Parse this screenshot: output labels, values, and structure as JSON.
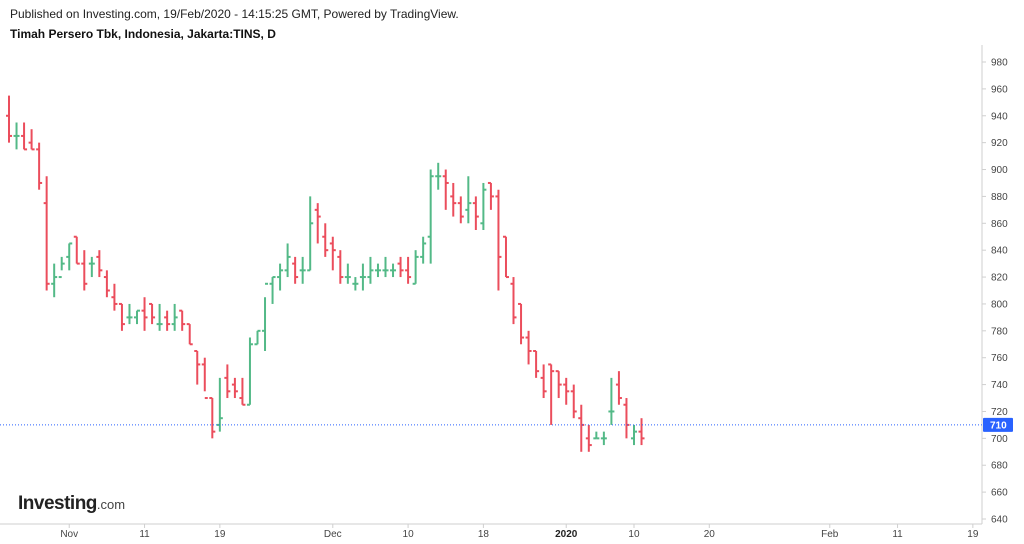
{
  "header": {
    "published": "Published on Investing.com, 19/Feb/2020 - 14:15:25 GMT, Powered by TradingView.",
    "symbol": "Timah Persero Tbk, Indonesia, Jakarta:TINS, D"
  },
  "logo": {
    "brand": "Investing",
    "suffix": ".com"
  },
  "colors": {
    "up": "#53b987",
    "down": "#eb4d5c",
    "last_line": "#2962ff",
    "badge": "#2962ff"
  },
  "chart_data": {
    "type": "ohlc",
    "ylim": [
      635,
      990
    ],
    "yticks": [
      640,
      660,
      680,
      700,
      720,
      740,
      760,
      780,
      800,
      820,
      840,
      860,
      880,
      900,
      920,
      940,
      960,
      980
    ],
    "last_price": 710,
    "last_price_label": "710",
    "xticks": [
      {
        "label": "Nov",
        "index": 8,
        "bold": false
      },
      {
        "label": "11",
        "index": 18,
        "bold": false
      },
      {
        "label": "19",
        "index": 28,
        "bold": false
      },
      {
        "label": "Dec",
        "index": 43,
        "bold": false
      },
      {
        "label": "10",
        "index": 53,
        "bold": false
      },
      {
        "label": "18",
        "index": 63,
        "bold": false
      },
      {
        "label": "2020",
        "index": 74,
        "bold": true
      },
      {
        "label": "10",
        "index": 83,
        "bold": false
      },
      {
        "label": "20",
        "index": 93,
        "bold": false
      },
      {
        "label": "Feb",
        "index": 109,
        "bold": false
      },
      {
        "label": "11",
        "index": 118,
        "bold": false
      },
      {
        "label": "19",
        "index": 128,
        "bold": false
      }
    ],
    "bars": [
      [
        940,
        955,
        920,
        925
      ],
      [
        925,
        935,
        915,
        925
      ],
      [
        925,
        935,
        915,
        915
      ],
      [
        920,
        930,
        915,
        915
      ],
      [
        915,
        920,
        885,
        890
      ],
      [
        875,
        895,
        810,
        815
      ],
      [
        815,
        830,
        805,
        820
      ],
      [
        820,
        835,
        825,
        830
      ],
      [
        835,
        845,
        825,
        845
      ],
      [
        850,
        850,
        830,
        830
      ],
      [
        830,
        840,
        810,
        815
      ],
      [
        830,
        835,
        820,
        830
      ],
      [
        835,
        840,
        820,
        825
      ],
      [
        820,
        825,
        805,
        810
      ],
      [
        805,
        815,
        795,
        800
      ],
      [
        800,
        800,
        780,
        785
      ],
      [
        790,
        800,
        785,
        790
      ],
      [
        790,
        795,
        785,
        795
      ],
      [
        795,
        805,
        780,
        790
      ],
      [
        800,
        800,
        785,
        790
      ],
      [
        785,
        800,
        780,
        785
      ],
      [
        790,
        795,
        780,
        785
      ],
      [
        785,
        800,
        780,
        790
      ],
      [
        795,
        795,
        780,
        785
      ],
      [
        785,
        785,
        770,
        770
      ],
      [
        765,
        765,
        740,
        755
      ],
      [
        755,
        760,
        735,
        730
      ],
      [
        730,
        730,
        700,
        705
      ],
      [
        710,
        745,
        705,
        715
      ],
      [
        745,
        755,
        730,
        735
      ],
      [
        740,
        745,
        730,
        735
      ],
      [
        730,
        745,
        725,
        725
      ],
      [
        725,
        775,
        725,
        770
      ],
      [
        770,
        780,
        770,
        780
      ],
      [
        780,
        805,
        765,
        815
      ],
      [
        815,
        820,
        800,
        820
      ],
      [
        820,
        830,
        810,
        825
      ],
      [
        825,
        845,
        820,
        835
      ],
      [
        830,
        835,
        815,
        820
      ],
      [
        825,
        835,
        815,
        825
      ],
      [
        825,
        880,
        825,
        860
      ],
      [
        870,
        875,
        845,
        865
      ],
      [
        850,
        860,
        835,
        840
      ],
      [
        845,
        850,
        825,
        840
      ],
      [
        835,
        840,
        815,
        820
      ],
      [
        820,
        830,
        815,
        820
      ],
      [
        815,
        820,
        810,
        815
      ],
      [
        820,
        830,
        810,
        820
      ],
      [
        820,
        835,
        815,
        825
      ],
      [
        825,
        830,
        820,
        825
      ],
      [
        825,
        835,
        820,
        825
      ],
      [
        825,
        830,
        820,
        825
      ],
      [
        830,
        835,
        820,
        825
      ],
      [
        825,
        835,
        815,
        820
      ],
      [
        815,
        840,
        815,
        835
      ],
      [
        835,
        850,
        830,
        845
      ],
      [
        850,
        900,
        830,
        895
      ],
      [
        895,
        905,
        885,
        895
      ],
      [
        895,
        900,
        870,
        890
      ],
      [
        880,
        890,
        865,
        875
      ],
      [
        875,
        880,
        860,
        865
      ],
      [
        870,
        895,
        860,
        875
      ],
      [
        875,
        880,
        855,
        865
      ],
      [
        860,
        890,
        855,
        885
      ],
      [
        890,
        890,
        870,
        880
      ],
      [
        880,
        885,
        810,
        835
      ],
      [
        850,
        850,
        820,
        820
      ],
      [
        815,
        820,
        785,
        790
      ],
      [
        800,
        800,
        770,
        775
      ],
      [
        775,
        780,
        755,
        765
      ],
      [
        765,
        765,
        745,
        750
      ],
      [
        745,
        755,
        730,
        735
      ],
      [
        755,
        755,
        710,
        750
      ],
      [
        750,
        750,
        730,
        740
      ],
      [
        740,
        745,
        725,
        735
      ],
      [
        735,
        740,
        715,
        720
      ],
      [
        715,
        725,
        690,
        710
      ],
      [
        700,
        710,
        690,
        695
      ],
      [
        700,
        705,
        700,
        700
      ],
      [
        700,
        705,
        695,
        700
      ],
      [
        720,
        745,
        710,
        720
      ],
      [
        740,
        750,
        725,
        730
      ],
      [
        725,
        730,
        700,
        710
      ],
      [
        700,
        710,
        695,
        705
      ],
      [
        705,
        715,
        695,
        700
      ]
    ]
  }
}
